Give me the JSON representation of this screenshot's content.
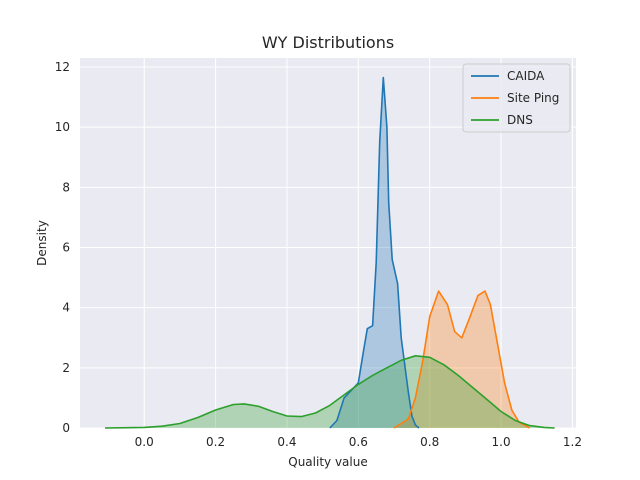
{
  "chart_data": {
    "type": "area",
    "title": "WY Distributions",
    "xlabel": "Quality value",
    "ylabel": "Density",
    "xlim": [
      -0.18,
      1.21
    ],
    "ylim": [
      0,
      12.3
    ],
    "xticks": [
      "0.0",
      "0.2",
      "0.4",
      "0.6",
      "0.8",
      "1.0",
      "1.2"
    ],
    "yticks": [
      "0",
      "2",
      "4",
      "6",
      "8",
      "10",
      "12"
    ],
    "grid": true,
    "legend_position": "top-right",
    "series": [
      {
        "name": "CAIDA",
        "color": "#1f77b4",
        "points": [
          [
            0.52,
            0
          ],
          [
            0.54,
            0.25
          ],
          [
            0.56,
            1.0
          ],
          [
            0.58,
            1.25
          ],
          [
            0.6,
            1.5
          ],
          [
            0.615,
            2.6
          ],
          [
            0.625,
            3.3
          ],
          [
            0.64,
            3.4
          ],
          [
            0.65,
            5.5
          ],
          [
            0.66,
            9.5
          ],
          [
            0.67,
            11.65
          ],
          [
            0.68,
            10.0
          ],
          [
            0.685,
            7.5
          ],
          [
            0.695,
            5.6
          ],
          [
            0.71,
            4.8
          ],
          [
            0.72,
            3.0
          ],
          [
            0.74,
            1.2
          ],
          [
            0.75,
            0.4
          ],
          [
            0.76,
            0.1
          ],
          [
            0.77,
            0
          ]
        ]
      },
      {
        "name": "Site Ping",
        "color": "#ff7f0e",
        "points": [
          [
            0.7,
            0
          ],
          [
            0.74,
            0.3
          ],
          [
            0.76,
            1.0
          ],
          [
            0.78,
            2.2
          ],
          [
            0.8,
            3.7
          ],
          [
            0.825,
            4.55
          ],
          [
            0.85,
            4.1
          ],
          [
            0.87,
            3.2
          ],
          [
            0.89,
            3.0
          ],
          [
            0.91,
            3.6
          ],
          [
            0.935,
            4.4
          ],
          [
            0.955,
            4.55
          ],
          [
            0.97,
            4.1
          ],
          [
            0.99,
            2.8
          ],
          [
            1.01,
            1.5
          ],
          [
            1.03,
            0.6
          ],
          [
            1.05,
            0.2
          ],
          [
            1.08,
            0
          ]
        ]
      },
      {
        "name": "DNS",
        "color": "#2ca02c",
        "points": [
          [
            -0.11,
            0
          ],
          [
            0.0,
            0.02
          ],
          [
            0.05,
            0.06
          ],
          [
            0.1,
            0.15
          ],
          [
            0.15,
            0.35
          ],
          [
            0.2,
            0.6
          ],
          [
            0.25,
            0.78
          ],
          [
            0.28,
            0.8
          ],
          [
            0.32,
            0.72
          ],
          [
            0.36,
            0.55
          ],
          [
            0.4,
            0.4
          ],
          [
            0.44,
            0.38
          ],
          [
            0.48,
            0.5
          ],
          [
            0.52,
            0.75
          ],
          [
            0.56,
            1.1
          ],
          [
            0.6,
            1.45
          ],
          [
            0.64,
            1.75
          ],
          [
            0.68,
            2.0
          ],
          [
            0.72,
            2.25
          ],
          [
            0.76,
            2.4
          ],
          [
            0.8,
            2.35
          ],
          [
            0.84,
            2.1
          ],
          [
            0.88,
            1.75
          ],
          [
            0.92,
            1.35
          ],
          [
            0.96,
            0.95
          ],
          [
            1.0,
            0.55
          ],
          [
            1.04,
            0.25
          ],
          [
            1.08,
            0.08
          ],
          [
            1.12,
            0.02
          ],
          [
            1.15,
            0
          ]
        ]
      }
    ]
  }
}
